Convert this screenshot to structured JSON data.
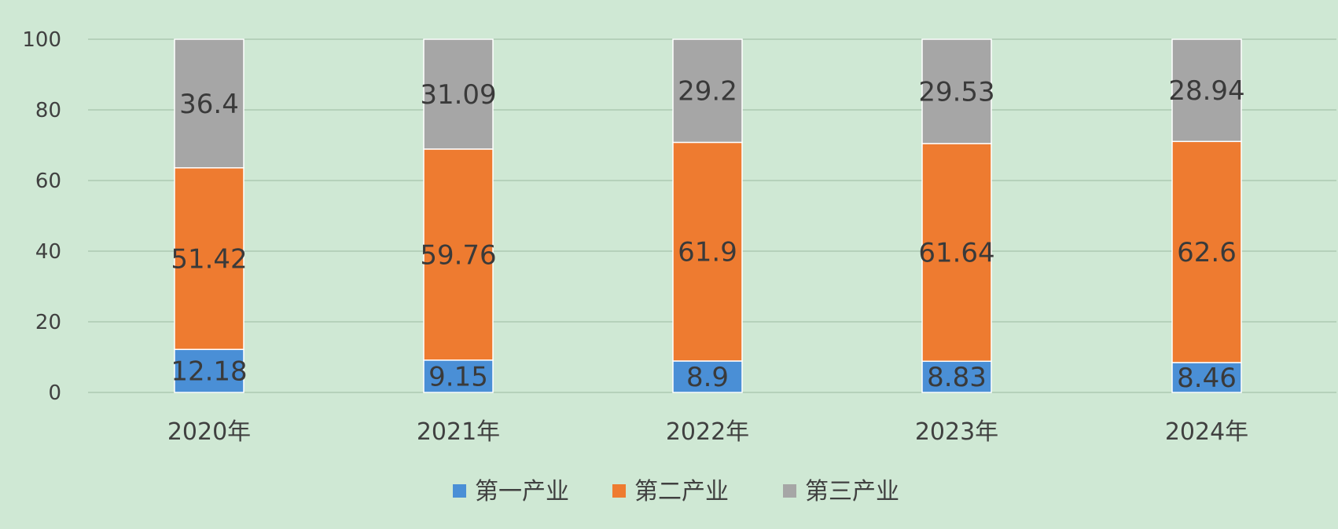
{
  "chart_data": {
    "type": "bar",
    "stacked": true,
    "categories": [
      "2020年",
      "2021年",
      "2022年",
      "2023年",
      "2024年"
    ],
    "series": [
      {
        "name": "第一产业",
        "color": "#4a8fd6",
        "values": [
          12.18,
          9.15,
          8.9,
          8.83,
          8.46
        ]
      },
      {
        "name": "第二产业",
        "color": "#ee7b30",
        "values": [
          51.42,
          59.76,
          61.9,
          61.64,
          62.6
        ]
      },
      {
        "name": "第三产业",
        "color": "#a6a6a6",
        "values": [
          36.4,
          31.09,
          29.2,
          29.53,
          28.94
        ]
      }
    ],
    "ylim": [
      0,
      100
    ],
    "yticks": [
      0,
      20,
      40,
      60,
      80,
      100
    ],
    "grid": true,
    "legend_position": "bottom",
    "title": "",
    "xlabel": "",
    "ylabel": ""
  }
}
